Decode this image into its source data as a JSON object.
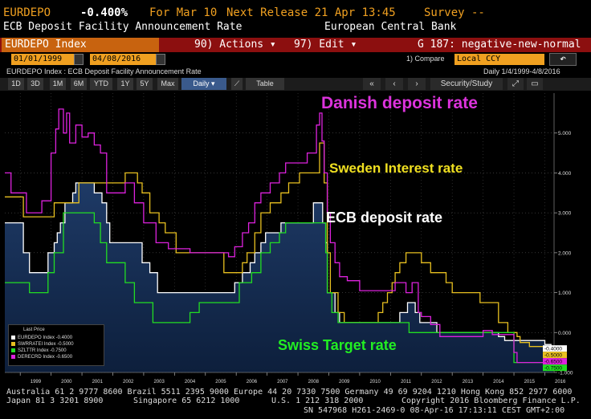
{
  "header": {
    "ticker": "EURDEPO",
    "value": "-0.400%",
    "for_date": "For Mar 10",
    "next_release": "Next Release 21 Apr 13:45",
    "survey": "Survey --",
    "description": "ECB Deposit Facility Announcement Rate",
    "source": "European Central Bank"
  },
  "menubar": {
    "index_name": "EURDEPO Index",
    "actions": "90) Actions ▾",
    "edit": "97) Edit ▾",
    "chart_name": "G 187: negative-new-normal"
  },
  "range": {
    "start_date": "01/01/1999",
    "end_date": "04/08/2016",
    "compare_label": "1) Compare",
    "compare_value": "Local CCY"
  },
  "subtitle": {
    "left": "EURDEPO Index : ECB Deposit Facility Announcement Rate",
    "right": "Daily   1/4/1999-4/8/2016"
  },
  "toolbar": {
    "periods": [
      "1D",
      "3D",
      "1M",
      "6M",
      "YTD",
      "1Y",
      "5Y",
      "Max"
    ],
    "frequency": "Daily ▾",
    "table": "Table",
    "security_study": "Security/Study"
  },
  "legend": {
    "title": "Last Price",
    "items": [
      {
        "label": "EURDEPO Index  -0.4000",
        "color": "#ffffff"
      },
      {
        "label": "SWRRATEI Index  -0.5000",
        "color": "#e8c020"
      },
      {
        "label": "SZLTTR Index  -0.7500",
        "color": "#22dd22"
      },
      {
        "label": "DERECRD Index  -0.6500",
        "color": "#dd22dd"
      }
    ]
  },
  "annotations": {
    "danish": "Danish deposit rate",
    "sweden": "Sweden Interest rate",
    "ecb": "ECB deposit rate",
    "swiss": "Swiss Target rate"
  },
  "footer": {
    "line1": "Australia 61 2 9777 8600 Brazil 5511 2395 9000 Europe 44 20 7330 7500 Germany 49 69 9204 1210 Hong Kong 852 2977 6000",
    "line2a": "Japan 81 3 3201 8900",
    "line2b": "Singapore 65 6212 1000",
    "line2c": "U.S. 1 212 318 2000",
    "line2d": "Copyright 2016 Bloomberg Finance L.P.",
    "line3": "SN 547968 H261-2469-0 08-Apr-16 17:13:11 CEST GMT+2:00"
  },
  "chart_data": {
    "type": "line",
    "ylim": [
      -1,
      6
    ],
    "xlim": [
      1998.5,
      2016.3
    ],
    "yticks": [
      "5.000",
      "4.000",
      "3.000",
      "2.000",
      "1.000",
      "0.000",
      "-1.000"
    ],
    "ytick_values": [
      5,
      4,
      3,
      2,
      1,
      0,
      -1
    ],
    "xticks": [
      "1999",
      "2000",
      "2001",
      "2002",
      "2003",
      "2004",
      "2005",
      "2006",
      "2007",
      "2008",
      "2009",
      "2010",
      "2011",
      "2012",
      "2013",
      "2014",
      "2015",
      "2016"
    ],
    "last_values": [
      {
        "label": "-0.4000",
        "value": -0.4,
        "bg": "#ffffff"
      },
      {
        "label": "-0.5000",
        "value": -0.5,
        "bg": "#e8c020"
      },
      {
        "label": "-0.6500",
        "value": -0.65,
        "bg": "#dd22dd"
      },
      {
        "label": "-0.7500",
        "value": -0.75,
        "bg": "#22dd22"
      }
    ],
    "series": [
      {
        "name": "EURDEPO Index",
        "color": "#ffffff",
        "fill": true,
        "points": [
          [
            1998.5,
            2.75
          ],
          [
            1999.0,
            2.75
          ],
          [
            1999.1,
            2.0
          ],
          [
            1999.3,
            1.5
          ],
          [
            1999.85,
            1.5
          ],
          [
            1999.9,
            2.0
          ],
          [
            2000.1,
            2.25
          ],
          [
            2000.2,
            2.5
          ],
          [
            2000.3,
            2.75
          ],
          [
            2000.45,
            3.25
          ],
          [
            2000.7,
            3.5
          ],
          [
            2000.8,
            3.75
          ],
          [
            2001.35,
            3.75
          ],
          [
            2001.4,
            3.5
          ],
          [
            2001.65,
            3.25
          ],
          [
            2001.8,
            2.75
          ],
          [
            2001.9,
            2.25
          ],
          [
            2002.9,
            2.25
          ],
          [
            2002.95,
            1.75
          ],
          [
            2003.2,
            1.5
          ],
          [
            2003.45,
            1.0
          ],
          [
            2005.9,
            1.0
          ],
          [
            2005.95,
            1.25
          ],
          [
            2006.2,
            1.5
          ],
          [
            2006.45,
            1.75
          ],
          [
            2006.6,
            2.0
          ],
          [
            2006.8,
            2.25
          ],
          [
            2006.95,
            2.5
          ],
          [
            2007.45,
            2.75
          ],
          [
            2008.5,
            3.25
          ],
          [
            2008.75,
            3.25
          ],
          [
            2008.8,
            2.75
          ],
          [
            2008.9,
            2.25
          ],
          [
            2008.95,
            1.0
          ],
          [
            2009.1,
            1.0
          ],
          [
            2009.2,
            0.5
          ],
          [
            2009.35,
            0.25
          ],
          [
            2011.25,
            0.25
          ],
          [
            2011.3,
            0.5
          ],
          [
            2011.55,
            0.75
          ],
          [
            2011.8,
            0.5
          ],
          [
            2011.95,
            0.25
          ],
          [
            2012.5,
            0.0
          ],
          [
            2014.45,
            0.0
          ],
          [
            2014.5,
            -0.1
          ],
          [
            2014.7,
            -0.2
          ],
          [
            2015.95,
            -0.2
          ],
          [
            2016.0,
            -0.3
          ],
          [
            2016.2,
            -0.4
          ],
          [
            2016.27,
            -0.4
          ]
        ]
      },
      {
        "name": "SWRRATEI Index",
        "color": "#e8c020",
        "fill": false,
        "points": [
          [
            1998.5,
            3.4
          ],
          [
            1999.0,
            3.4
          ],
          [
            1999.1,
            2.9
          ],
          [
            1999.3,
            2.9
          ],
          [
            1999.9,
            2.9
          ],
          [
            2000.1,
            3.25
          ],
          [
            2000.9,
            3.75
          ],
          [
            2001.5,
            3.75
          ],
          [
            2001.6,
            3.75
          ],
          [
            2001.8,
            3.75
          ],
          [
            2002.1,
            3.75
          ],
          [
            2002.4,
            4.0
          ],
          [
            2002.8,
            3.75
          ],
          [
            2002.95,
            3.5
          ],
          [
            2003.2,
            3.0
          ],
          [
            2003.5,
            2.75
          ],
          [
            2003.7,
            2.5
          ],
          [
            2004.05,
            2.0
          ],
          [
            2005.5,
            2.0
          ],
          [
            2005.6,
            1.5
          ],
          [
            2006.05,
            1.5
          ],
          [
            2006.2,
            1.75
          ],
          [
            2006.35,
            2.0
          ],
          [
            2006.6,
            2.5
          ],
          [
            2006.8,
            3.0
          ],
          [
            2007.1,
            3.25
          ],
          [
            2007.45,
            3.5
          ],
          [
            2007.7,
            3.75
          ],
          [
            2008.05,
            4.0
          ],
          [
            2008.7,
            4.75
          ],
          [
            2008.85,
            3.75
          ],
          [
            2008.95,
            2.0
          ],
          [
            2009.05,
            1.0
          ],
          [
            2009.3,
            0.5
          ],
          [
            2009.5,
            0.25
          ],
          [
            2010.5,
            0.25
          ],
          [
            2010.6,
            0.5
          ],
          [
            2010.75,
            0.75
          ],
          [
            2010.9,
            1.0
          ],
          [
            2011.05,
            1.25
          ],
          [
            2011.15,
            1.5
          ],
          [
            2011.3,
            1.75
          ],
          [
            2011.5,
            2.0
          ],
          [
            2011.8,
            2.0
          ],
          [
            2012.0,
            1.75
          ],
          [
            2012.3,
            1.5
          ],
          [
            2012.8,
            1.25
          ],
          [
            2013.0,
            1.0
          ],
          [
            2013.9,
            0.75
          ],
          [
            2014.5,
            0.25
          ],
          [
            2014.8,
            0.0
          ],
          [
            2015.1,
            -0.1
          ],
          [
            2015.2,
            -0.25
          ],
          [
            2015.5,
            -0.35
          ],
          [
            2015.8,
            -0.35
          ],
          [
            2016.1,
            -0.5
          ],
          [
            2016.27,
            -0.5
          ]
        ]
      },
      {
        "name": "SZLTTR Index",
        "color": "#22dd22",
        "fill": false,
        "points": [
          [
            1998.5,
            1.25
          ],
          [
            1999.2,
            1.25
          ],
          [
            1999.3,
            1.0
          ],
          [
            1999.9,
            1.5
          ],
          [
            2000.1,
            2.0
          ],
          [
            2000.4,
            3.0
          ],
          [
            2001.2,
            3.0
          ],
          [
            2001.4,
            2.75
          ],
          [
            2001.6,
            2.25
          ],
          [
            2001.8,
            1.75
          ],
          [
            2002.0,
            1.75
          ],
          [
            2002.4,
            1.25
          ],
          [
            2002.7,
            0.75
          ],
          [
            2003.1,
            0.75
          ],
          [
            2003.3,
            0.25
          ],
          [
            2004.4,
            0.25
          ],
          [
            2004.5,
            0.5
          ],
          [
            2004.8,
            0.75
          ],
          [
            2005.9,
            0.75
          ],
          [
            2006.1,
            1.25
          ],
          [
            2006.5,
            1.5
          ],
          [
            2006.8,
            2.0
          ],
          [
            2007.1,
            2.25
          ],
          [
            2007.4,
            2.5
          ],
          [
            2007.6,
            2.75
          ],
          [
            2008.8,
            2.75
          ],
          [
            2008.9,
            2.0
          ],
          [
            2008.95,
            1.0
          ],
          [
            2009.1,
            0.5
          ],
          [
            2009.3,
            0.25
          ],
          [
            2011.5,
            0.25
          ],
          [
            2011.6,
            0.0
          ],
          [
            2014.9,
            0.0
          ],
          [
            2015.0,
            -0.75
          ],
          [
            2016.27,
            -0.75
          ]
        ]
      },
      {
        "name": "DERECRD Index",
        "color": "#dd22dd",
        "fill": false,
        "points": [
          [
            1998.5,
            4.0
          ],
          [
            1998.7,
            3.5
          ],
          [
            1999.2,
            3.0
          ],
          [
            1999.5,
            3.0
          ],
          [
            1999.7,
            3.3
          ],
          [
            2000.0,
            4.5
          ],
          [
            2000.15,
            5.1
          ],
          [
            2000.25,
            5.6
          ],
          [
            2000.4,
            5.0
          ],
          [
            2000.5,
            5.5
          ],
          [
            2000.6,
            4.75
          ],
          [
            2000.8,
            5.2
          ],
          [
            2001.0,
            4.9
          ],
          [
            2001.2,
            5.0
          ],
          [
            2001.4,
            4.7
          ],
          [
            2001.6,
            4.5
          ],
          [
            2001.8,
            3.5
          ],
          [
            2002.1,
            3.5
          ],
          [
            2002.4,
            3.75
          ],
          [
            2002.7,
            3.25
          ],
          [
            2003.0,
            2.75
          ],
          [
            2003.4,
            2.25
          ],
          [
            2003.8,
            2.1
          ],
          [
            2004.5,
            2.0
          ],
          [
            2005.6,
            2.0
          ],
          [
            2005.75,
            1.9
          ],
          [
            2005.95,
            2.15
          ],
          [
            2006.2,
            2.5
          ],
          [
            2006.4,
            2.75
          ],
          [
            2006.6,
            3.25
          ],
          [
            2006.8,
            3.5
          ],
          [
            2007.1,
            3.75
          ],
          [
            2007.4,
            4.0
          ],
          [
            2007.6,
            4.25
          ],
          [
            2008.0,
            4.25
          ],
          [
            2008.3,
            4.5
          ],
          [
            2008.6,
            5.2
          ],
          [
            2008.7,
            5.5
          ],
          [
            2008.78,
            4.8
          ],
          [
            2008.85,
            4.0
          ],
          [
            2008.95,
            3.0
          ],
          [
            2009.05,
            2.25
          ],
          [
            2009.2,
            1.75
          ],
          [
            2009.35,
            1.4
          ],
          [
            2009.6,
            1.3
          ],
          [
            2010.0,
            1.05
          ],
          [
            2011.0,
            1.05
          ],
          [
            2011.15,
            1.25
          ],
          [
            2011.5,
            1.0
          ],
          [
            2011.7,
            1.25
          ],
          [
            2011.9,
            0.5
          ],
          [
            2012.0,
            0.4
          ],
          [
            2012.3,
            0.2
          ],
          [
            2012.6,
            -0.1
          ],
          [
            2013.2,
            -0.1
          ],
          [
            2014.0,
            0.05
          ],
          [
            2014.3,
            -0.05
          ],
          [
            2014.8,
            -0.05
          ],
          [
            2015.0,
            -0.5
          ],
          [
            2015.1,
            -0.75
          ],
          [
            2015.5,
            -0.75
          ],
          [
            2016.0,
            -0.65
          ],
          [
            2016.27,
            -0.65
          ]
        ]
      }
    ]
  }
}
